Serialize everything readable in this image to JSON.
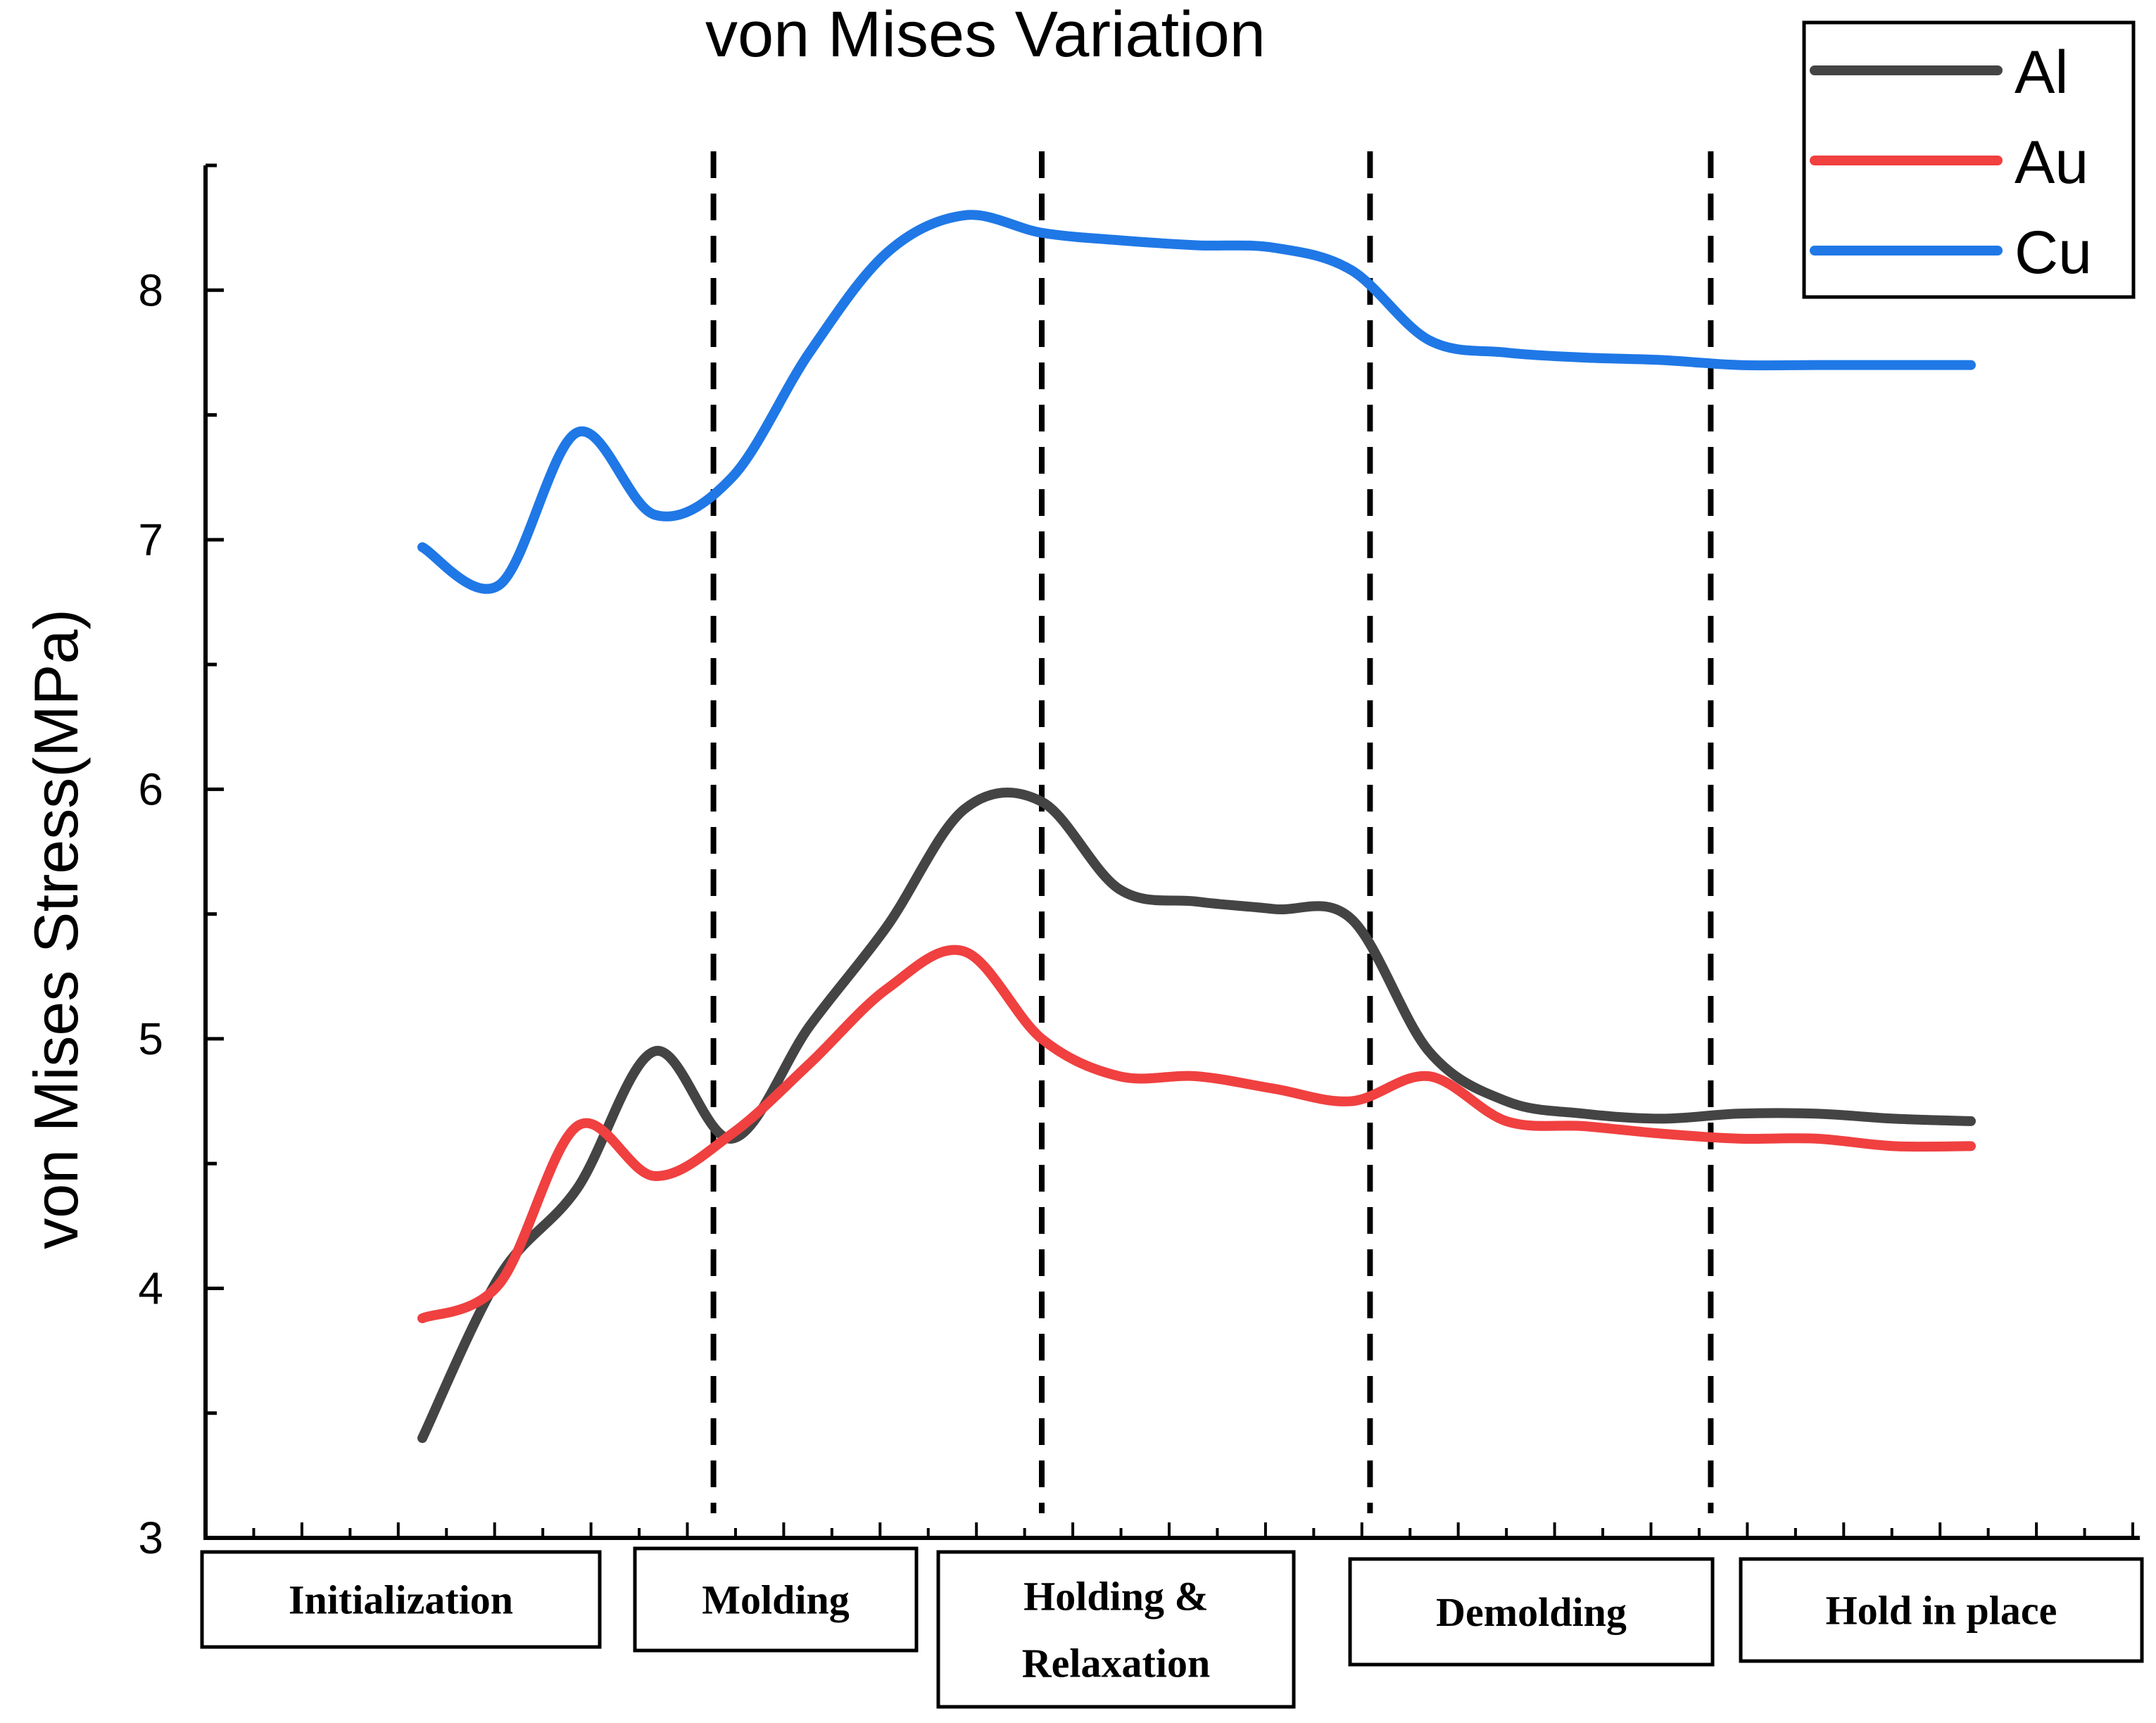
{
  "chart_data": {
    "type": "line",
    "title": "von Mises Variation",
    "ylabel": "von Mises Stress(MPa)",
    "xlabel": "",
    "x": [
      0.0,
      0.25,
      0.5,
      0.75,
      1.0,
      1.25,
      1.5,
      1.75,
      2.0,
      2.25,
      2.5,
      2.75,
      3.0,
      3.25,
      3.5,
      3.75,
      4.0,
      4.25,
      4.5,
      4.75,
      5.0
    ],
    "ylim": [
      3,
      8.5
    ],
    "yticks": [
      "3",
      "4",
      "5",
      "6",
      "7",
      "8"
    ],
    "grid": false,
    "legend_position": "top-right",
    "series": [
      {
        "name": "Al",
        "color": "#444444",
        "values": [
          3.4,
          4.05,
          4.4,
          4.95,
          4.6,
          5.05,
          5.45,
          5.92,
          5.95,
          5.6,
          5.55,
          5.52,
          5.48,
          4.95,
          4.75,
          4.7,
          4.68,
          4.7,
          4.7,
          4.68,
          4.67
        ]
      },
      {
        "name": "Au",
        "color": "#f04040",
        "values": [
          3.88,
          4.02,
          4.65,
          4.45,
          4.62,
          4.9,
          5.2,
          5.35,
          5.0,
          4.85,
          4.85,
          4.8,
          4.75,
          4.85,
          4.67,
          4.65,
          4.62,
          4.6,
          4.6,
          4.57,
          4.57
        ]
      },
      {
        "name": "Cu",
        "color": "#1f78e6",
        "values": [
          6.97,
          6.82,
          7.43,
          7.1,
          7.25,
          7.75,
          8.15,
          8.3,
          8.23,
          8.2,
          8.18,
          8.17,
          8.08,
          7.8,
          7.75,
          7.73,
          7.72,
          7.7,
          7.7,
          7.7,
          7.7
        ]
      }
    ],
    "phase_boundaries_x": [
      0.94,
      2.0,
      3.06,
      4.16
    ],
    "phases": [
      "Initialization",
      "Molding",
      "Holding &\nRelaxation",
      "Demolding",
      "Hold in place"
    ]
  }
}
